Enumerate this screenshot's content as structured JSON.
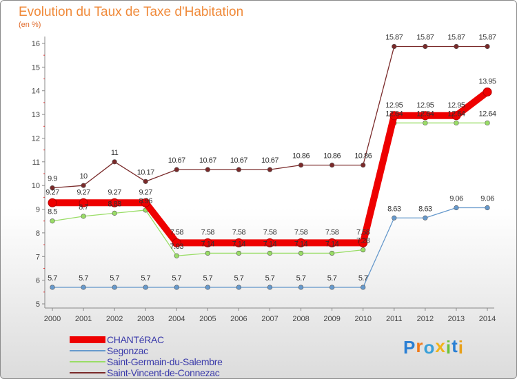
{
  "chart_data": {
    "type": "line",
    "title": "Evolution du Taux de Taxe d'Habitation",
    "subtitle": "(en %)",
    "x": [
      "2000",
      "2001",
      "2002",
      "2003",
      "2004",
      "2005",
      "2006",
      "2007",
      "2008",
      "2009",
      "2010",
      "2011",
      "2012",
      "2013",
      "2014"
    ],
    "ylim": [
      5,
      16
    ],
    "yticks": [
      "5",
      "6",
      "7",
      "8",
      "9",
      "10",
      "11",
      "12",
      "13",
      "14",
      "15",
      "16"
    ],
    "grid": false,
    "legend_position": "bottom-left",
    "series": [
      {
        "name": "CHANTéRAC",
        "color": "#ee0000",
        "values": [
          9.27,
          9.27,
          9.27,
          9.27,
          7.58,
          7.58,
          7.58,
          7.58,
          7.58,
          7.58,
          7.58,
          12.95,
          12.95,
          12.95,
          13.95
        ],
        "labels": [
          "9.27",
          "9.27",
          "9.27",
          "9.27",
          "7.58",
          "7.58",
          "7.58",
          "7.58",
          "7.58",
          "7.58",
          "7.58",
          "12.95",
          "12.95",
          "12.95",
          "13.95"
        ]
      },
      {
        "name": "Segonzac",
        "color": "#6699cc",
        "values": [
          5.7,
          5.7,
          5.7,
          5.7,
          5.7,
          5.7,
          5.7,
          5.7,
          5.7,
          5.7,
          5.7,
          8.63,
          8.63,
          9.06,
          9.06
        ],
        "labels": [
          "5.7",
          "5.7",
          "5.7",
          "5.7",
          "5.7",
          "5.7",
          "5.7",
          "5.7",
          "5.7",
          "5.7",
          "5.7",
          "8.63",
          "8.63",
          "9.06",
          "9.06"
        ]
      },
      {
        "name": "Saint-Germain-du-Salembre",
        "color": "#99dd66",
        "values": [
          8.5,
          8.7,
          8.83,
          8.96,
          7.03,
          7.14,
          7.14,
          7.14,
          7.14,
          7.14,
          7.28,
          12.64,
          12.64,
          12.64,
          12.64
        ],
        "labels": [
          "8.5",
          "8.7",
          "8.83",
          "8.96",
          "7.03",
          "7.14",
          "7.14",
          "7.14",
          "7.14",
          "7.14",
          "7.28",
          "12.64",
          "12.64",
          "12.64",
          "12.64"
        ]
      },
      {
        "name": "Saint-Vincent-de-Connezac",
        "color": "#7a2a2a",
        "values": [
          9.9,
          10,
          11,
          10.17,
          10.67,
          10.67,
          10.67,
          10.67,
          10.86,
          10.86,
          10.86,
          15.87,
          15.87,
          15.87,
          15.87
        ],
        "labels": [
          "9.9",
          "10",
          "11",
          "10.17",
          "10.67",
          "10.67",
          "10.67",
          "10.67",
          "10.86",
          "10.86",
          "10.86",
          "15.87",
          "15.87",
          "15.87",
          "15.87"
        ]
      }
    ]
  },
  "logo": {
    "text": "Proxiti",
    "colors": [
      "#2a7fd4",
      "#f07a1a",
      "#3aa0d8",
      "#f0b41a",
      "#6ac23a",
      "#2a7fd4",
      "#e8a01a"
    ]
  }
}
